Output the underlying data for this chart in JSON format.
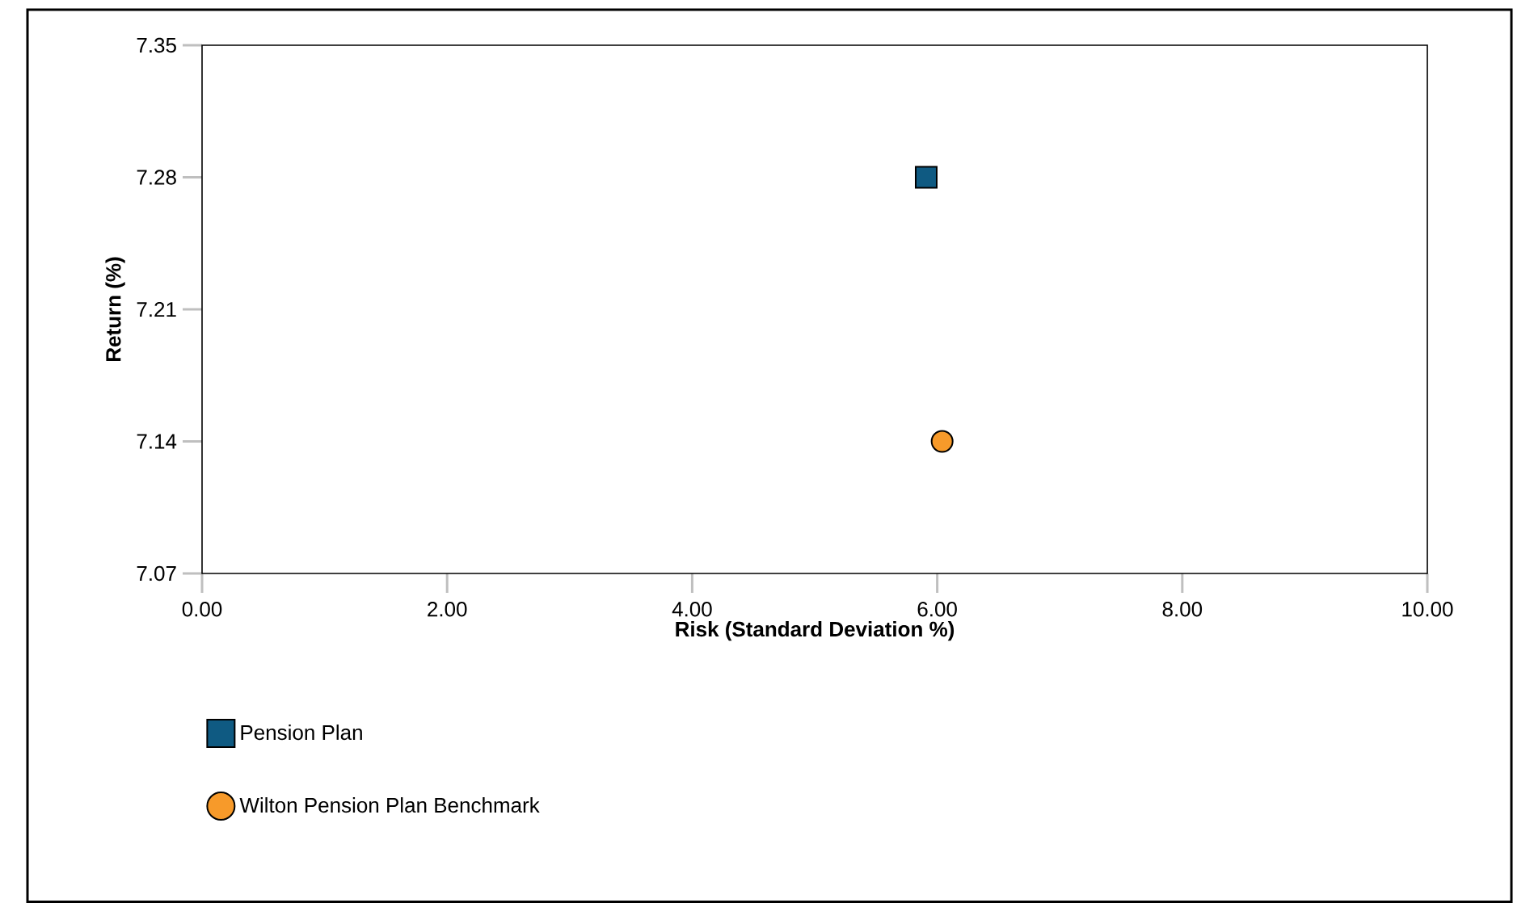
{
  "chart_data": {
    "type": "scatter",
    "xlabel": "Risk (Standard Deviation %)",
    "ylabel": "Return (%)",
    "xlim": [
      0,
      10
    ],
    "ylim": [
      7.07,
      7.35
    ],
    "xticks": [
      {
        "value": 0,
        "label": "0.00"
      },
      {
        "value": 2,
        "label": "2.00"
      },
      {
        "value": 4,
        "label": "4.00"
      },
      {
        "value": 6,
        "label": "6.00"
      },
      {
        "value": 8,
        "label": "8.00"
      },
      {
        "value": 10,
        "label": "10.00"
      }
    ],
    "yticks": [
      7.07,
      7.14,
      7.21,
      7.28,
      7.35
    ],
    "grid": false,
    "legend": "bottom left",
    "series": [
      {
        "name": "Pension Plan",
        "color": "#0f5a82",
        "marker": "square",
        "x": [
          5.91
        ],
        "values": [
          7.28
        ]
      },
      {
        "name": "Wilton Pension Plan Benchmark",
        "color": "#f79a2a",
        "marker": "circle",
        "x": [
          6.04
        ],
        "values": [
          7.14
        ]
      }
    ]
  }
}
